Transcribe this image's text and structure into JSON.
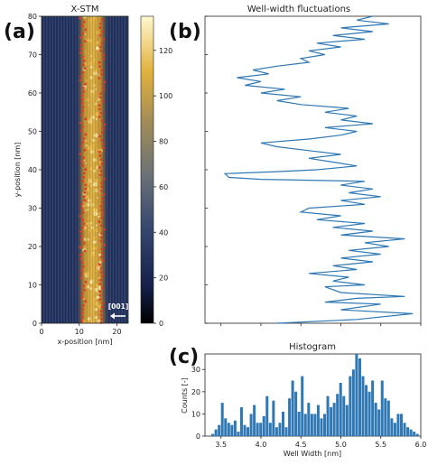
{
  "chart_data": [
    {
      "panel": "(a)",
      "type": "heatmap",
      "title": "X-STM",
      "xlabel": "x-position [nm]",
      "ylabel": "y-position [nm]",
      "xlim": [
        0,
        23
      ],
      "ylim": [
        0,
        80
      ],
      "x_ticks": [
        0,
        10,
        20
      ],
      "y_ticks": [
        0,
        10,
        20,
        30,
        40,
        50,
        60,
        70,
        80
      ],
      "annotation": "[001]",
      "annotation_arrow": "left",
      "colorbar": {
        "ticks": [
          0,
          20,
          40,
          60,
          80,
          100,
          120
        ],
        "range": [
          0,
          135
        ],
        "colors": [
          "#000000",
          "#1c2a5a",
          "#3a4a6a",
          "#6d7375",
          "#a8904f",
          "#e0b13a",
          "#fff4c0"
        ]
      },
      "well_region_x": [
        10.5,
        16.5
      ],
      "edge_marker_color": "#e03a2a"
    },
    {
      "panel": "(b)",
      "type": "line",
      "title": "Well-width fluctuations",
      "ylim": [
        0,
        80
      ],
      "xlim": [
        3.3,
        6.0
      ],
      "line_color": "#2f78b4",
      "series": [
        {
          "points": [
            [
              4.2,
              0
            ],
            [
              5.2,
              1
            ],
            [
              5.9,
              2.5
            ],
            [
              5.0,
              3.5
            ],
            [
              5.5,
              5
            ],
            [
              4.8,
              5.5
            ],
            [
              5.2,
              6.5
            ],
            [
              5.8,
              7
            ],
            [
              5.0,
              8
            ],
            [
              4.8,
              9.5
            ],
            [
              5.3,
              10
            ],
            [
              4.9,
              11
            ],
            [
              5.1,
              12
            ],
            [
              4.6,
              13
            ],
            [
              5.2,
              14
            ],
            [
              4.9,
              15
            ],
            [
              5.4,
              16
            ],
            [
              5.0,
              17
            ],
            [
              5.5,
              18
            ],
            [
              5.1,
              19
            ],
            [
              5.6,
              20
            ],
            [
              5.3,
              21
            ],
            [
              5.8,
              22
            ],
            [
              5.0,
              23
            ],
            [
              5.4,
              24
            ],
            [
              4.9,
              25
            ],
            [
              5.3,
              26
            ],
            [
              4.7,
              27
            ],
            [
              5.0,
              28
            ],
            [
              4.5,
              29
            ],
            [
              4.6,
              30
            ],
            [
              5.3,
              31
            ],
            [
              5.0,
              32
            ],
            [
              5.5,
              33
            ],
            [
              5.1,
              34
            ],
            [
              5.4,
              35
            ],
            [
              5.0,
              36
            ],
            [
              5.3,
              37
            ],
            [
              4.0,
              37.5
            ],
            [
              3.6,
              38
            ],
            [
              3.55,
              39
            ],
            [
              4.2,
              39.5
            ],
            [
              4.7,
              40
            ],
            [
              5.2,
              41
            ],
            [
              4.9,
              42
            ],
            [
              4.6,
              43
            ],
            [
              5.0,
              44
            ],
            [
              4.6,
              45
            ],
            [
              4.2,
              46
            ],
            [
              4.0,
              47
            ],
            [
              4.6,
              48
            ],
            [
              5.0,
              49
            ],
            [
              5.2,
              50
            ],
            [
              4.8,
              51
            ],
            [
              5.4,
              52
            ],
            [
              5.0,
              53
            ],
            [
              5.2,
              54
            ],
            [
              4.8,
              55
            ],
            [
              5.1,
              56
            ],
            [
              4.5,
              57
            ],
            [
              4.2,
              58
            ],
            [
              4.5,
              59
            ],
            [
              4.0,
              60
            ],
            [
              4.3,
              61
            ],
            [
              3.8,
              62
            ],
            [
              4.0,
              63
            ],
            [
              3.7,
              64
            ],
            [
              4.1,
              65
            ],
            [
              3.9,
              66
            ],
            [
              4.2,
              67
            ],
            [
              4.6,
              68
            ],
            [
              4.5,
              69
            ],
            [
              4.8,
              70
            ],
            [
              4.6,
              71
            ],
            [
              5.0,
              72
            ],
            [
              4.7,
              73
            ],
            [
              5.3,
              74
            ],
            [
              4.9,
              75
            ],
            [
              5.4,
              76
            ],
            [
              5.0,
              77
            ],
            [
              5.6,
              78
            ],
            [
              5.2,
              79
            ],
            [
              5.4,
              80
            ]
          ]
        }
      ]
    },
    {
      "panel": "(c)",
      "type": "bar",
      "title": "Histogram",
      "xlabel": "Well Width [nm]",
      "ylabel": "Counts [-]",
      "xlim": [
        3.3,
        6.0
      ],
      "ylim": [
        0,
        37
      ],
      "x_ticks": [
        3.5,
        4.0,
        4.5,
        5.0,
        5.5,
        6.0
      ],
      "y_ticks": [
        0,
        10,
        20,
        30
      ],
      "bar_color": "#2f78b4",
      "bin_width": 0.04,
      "bins_start": 3.38,
      "values": [
        1,
        3,
        5,
        15,
        8,
        6,
        5,
        7,
        2,
        13,
        5,
        4,
        10,
        14,
        6,
        6,
        9,
        18,
        6,
        16,
        4,
        6,
        11,
        4,
        17,
        25,
        20,
        11,
        27,
        10,
        15,
        10,
        10,
        14,
        8,
        10,
        18,
        13,
        15,
        19,
        24,
        18,
        14,
        27,
        30,
        37,
        35,
        27,
        23,
        20,
        25,
        15,
        12,
        25,
        17,
        16,
        8,
        6,
        10,
        10,
        6,
        4,
        3,
        2,
        1
      ]
    }
  ]
}
